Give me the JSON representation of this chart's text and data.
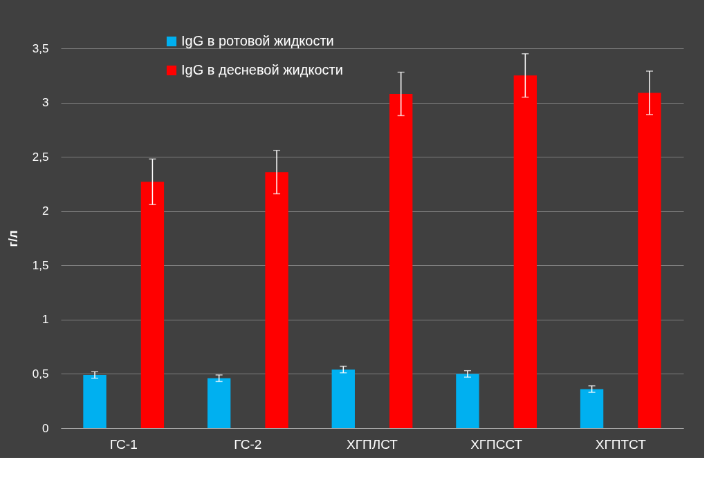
{
  "chart_data": {
    "type": "bar",
    "ylabel": "г/л",
    "categories": [
      "ГС-1",
      "ГС-2",
      "ХГПЛСТ",
      "ХГПССТ",
      "ХГПТСТ"
    ],
    "series": [
      {
        "name": "IgG в ротовой жидкости",
        "color": "#00b0f0",
        "values": [
          0.49,
          0.46,
          0.54,
          0.5,
          0.36
        ],
        "errors": [
          0.03,
          0.03,
          0.03,
          0.03,
          0.03
        ]
      },
      {
        "name": "IgG в десневой жидкости",
        "color": "#ff0000",
        "values": [
          2.27,
          2.36,
          3.08,
          3.25,
          3.09
        ],
        "errors": [
          0.21,
          0.2,
          0.2,
          0.2,
          0.2
        ]
      }
    ],
    "ylim": [
      0,
      3.5
    ],
    "yticks": [
      {
        "value": 0,
        "label": "0"
      },
      {
        "value": 0.5,
        "label": "0,5"
      },
      {
        "value": 1,
        "label": "1"
      },
      {
        "value": 1.5,
        "label": "1,5"
      },
      {
        "value": 2,
        "label": "2"
      },
      {
        "value": 2.5,
        "label": "2,5"
      },
      {
        "value": 3,
        "label": "3"
      },
      {
        "value": 3.5,
        "label": "3,5"
      }
    ],
    "grid": "y",
    "legend": "top left"
  }
}
